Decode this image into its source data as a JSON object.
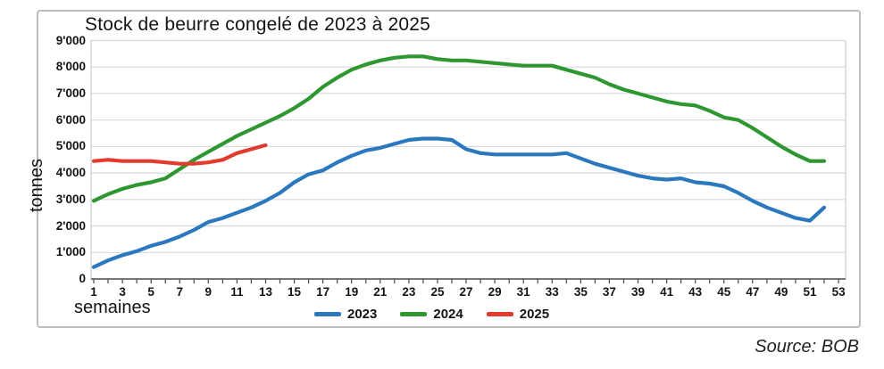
{
  "title": "Stock de beurre congelé de 2023 à 2025",
  "y_axis": {
    "label": "tonnes",
    "tick_labels": [
      "0",
      "1'000",
      "2'000",
      "3'000",
      "4'000",
      "5'000",
      "6'000",
      "7'000",
      "8'000",
      "9'000"
    ]
  },
  "x_axis": {
    "label": "semaines",
    "tick_labels": [
      1,
      3,
      5,
      7,
      9,
      11,
      13,
      15,
      17,
      19,
      21,
      23,
      25,
      27,
      29,
      31,
      33,
      35,
      37,
      39,
      41,
      43,
      45,
      47,
      49,
      51,
      53
    ]
  },
  "legend": {
    "items": [
      {
        "label": "2023",
        "color": "#2b78be"
      },
      {
        "label": "2024",
        "color": "#2f9732"
      },
      {
        "label": "2025",
        "color": "#e23b2e"
      }
    ]
  },
  "source": "Source: BOB",
  "colors": {
    "gridline": "#d9d9d9",
    "axis": "#4a4a4a",
    "plot_border": "#c9cdd0"
  },
  "chart_data": {
    "type": "line",
    "title": "Stock de beurre congelé de 2023 à 2025",
    "xlabel": "semaines",
    "ylabel": "tonnes",
    "xlim": [
      1,
      53
    ],
    "ylim": [
      0,
      9000
    ],
    "y_step": 1000,
    "grid": "horizontal",
    "legend_position": "bottom-center",
    "x_unit": "week_number",
    "series": [
      {
        "name": "2023",
        "color": "#2b78be",
        "start_week": 1,
        "values": [
          450,
          700,
          900,
          1050,
          1250,
          1400,
          1600,
          1850,
          2150,
          2300,
          2500,
          2700,
          2950,
          3250,
          3650,
          3950,
          4100,
          4400,
          4650,
          4850,
          4950,
          5100,
          5250,
          5300,
          5300,
          5250,
          4900,
          4750,
          4700,
          4700,
          4700,
          4700,
          4700,
          4750,
          4550,
          4350,
          4200,
          4050,
          3900,
          3800,
          3750,
          3800,
          3650,
          3600,
          3500,
          3250,
          2950,
          2700,
          2500,
          2300,
          2200,
          2700
        ]
      },
      {
        "name": "2024",
        "color": "#2f9732",
        "start_week": 1,
        "values": [
          2950,
          3200,
          3400,
          3550,
          3650,
          3800,
          4150,
          4500,
          4800,
          5100,
          5400,
          5650,
          5900,
          6150,
          6450,
          6800,
          7250,
          7600,
          7900,
          8100,
          8250,
          8350,
          8400,
          8400,
          8300,
          8250,
          8250,
          8200,
          8150,
          8100,
          8050,
          8050,
          8050,
          7900,
          7750,
          7600,
          7350,
          7150,
          7000,
          6850,
          6700,
          6600,
          6550,
          6350,
          6100,
          6000,
          5700,
          5350,
          5000,
          4700,
          4450,
          4450
        ]
      },
      {
        "name": "2025",
        "color": "#e23b2e",
        "start_week": 1,
        "values": [
          4450,
          4500,
          4450,
          4450,
          4450,
          4400,
          4350,
          4350,
          4400,
          4500,
          4750,
          4900,
          5050
        ]
      }
    ]
  }
}
